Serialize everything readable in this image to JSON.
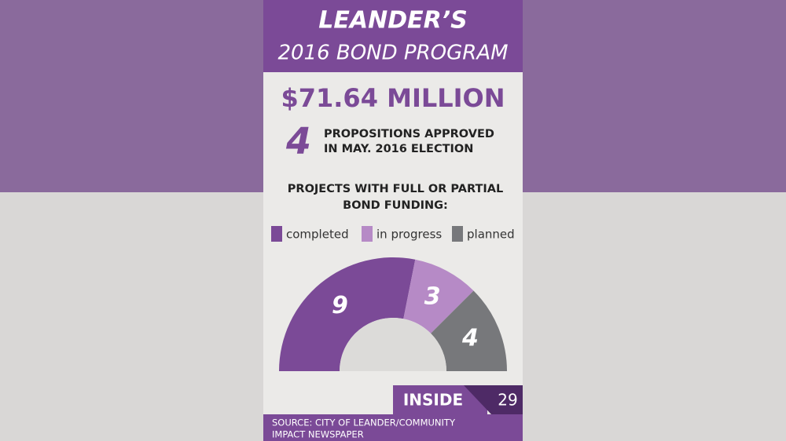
{
  "header": {
    "title": "LEANDER’S",
    "subtitle": "2016 BOND PROGRAM"
  },
  "summary": {
    "amount": "$71.64 MILLION",
    "count": "4",
    "count_text_1": "PROPOSITIONS APPROVED",
    "count_text_2": "IN MAY. 2016 ELECTION"
  },
  "chart_data": {
    "type": "pie",
    "style": "half-donut",
    "title_lines": [
      "PROJECTS WITH FULL OR PARTIAL",
      "BOND FUNDING:"
    ],
    "categories": [
      "completed",
      "in progress",
      "planned"
    ],
    "values": [
      9,
      3,
      4
    ],
    "colors": [
      "#7b4a97",
      "#b68ac6",
      "#77787b"
    ],
    "legend": "top"
  },
  "footer": {
    "inside_label": "INSIDE",
    "page": "29",
    "source_1": "SOURCE: CITY OF LEANDER/COMMUNITY",
    "source_2": "IMPACT NEWSPAPER"
  }
}
